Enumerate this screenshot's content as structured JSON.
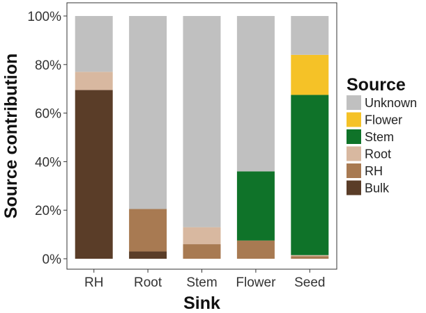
{
  "chart_data": {
    "type": "bar",
    "stacked": true,
    "xlabel": "Sink",
    "ylabel": "Source contribution",
    "ylim": [
      0,
      100
    ],
    "yticks": [
      "0%",
      "20%",
      "40%",
      "60%",
      "80%",
      "100%"
    ],
    "ytick_values": [
      0,
      20,
      40,
      60,
      80,
      100
    ],
    "categories": [
      "RH",
      "Root",
      "Stem",
      "Flower",
      "Seed"
    ],
    "series": [
      {
        "name": "Bulk",
        "color": "#5a3d28",
        "values": [
          69.5,
          3,
          0,
          0,
          0
        ]
      },
      {
        "name": "RH",
        "color": "#a87a52",
        "values": [
          0,
          17.5,
          6,
          7.5,
          1
        ]
      },
      {
        "name": "Root",
        "color": "#d8b8a0",
        "values": [
          7.5,
          0,
          7,
          0,
          0.5
        ]
      },
      {
        "name": "Stem",
        "color": "#0f7329",
        "values": [
          0,
          0,
          0,
          28.5,
          66
        ]
      },
      {
        "name": "Flower",
        "color": "#f5c227",
        "values": [
          0,
          0,
          0,
          0,
          16.5
        ]
      },
      {
        "name": "Unknown",
        "color": "#c0c0c0",
        "values": [
          23,
          79.5,
          87,
          64,
          16
        ]
      }
    ],
    "grid": false,
    "legend": {
      "title": "Source",
      "placement": "right",
      "order": [
        "Unknown",
        "Flower",
        "Stem",
        "Root",
        "RH",
        "Bulk"
      ]
    }
  }
}
